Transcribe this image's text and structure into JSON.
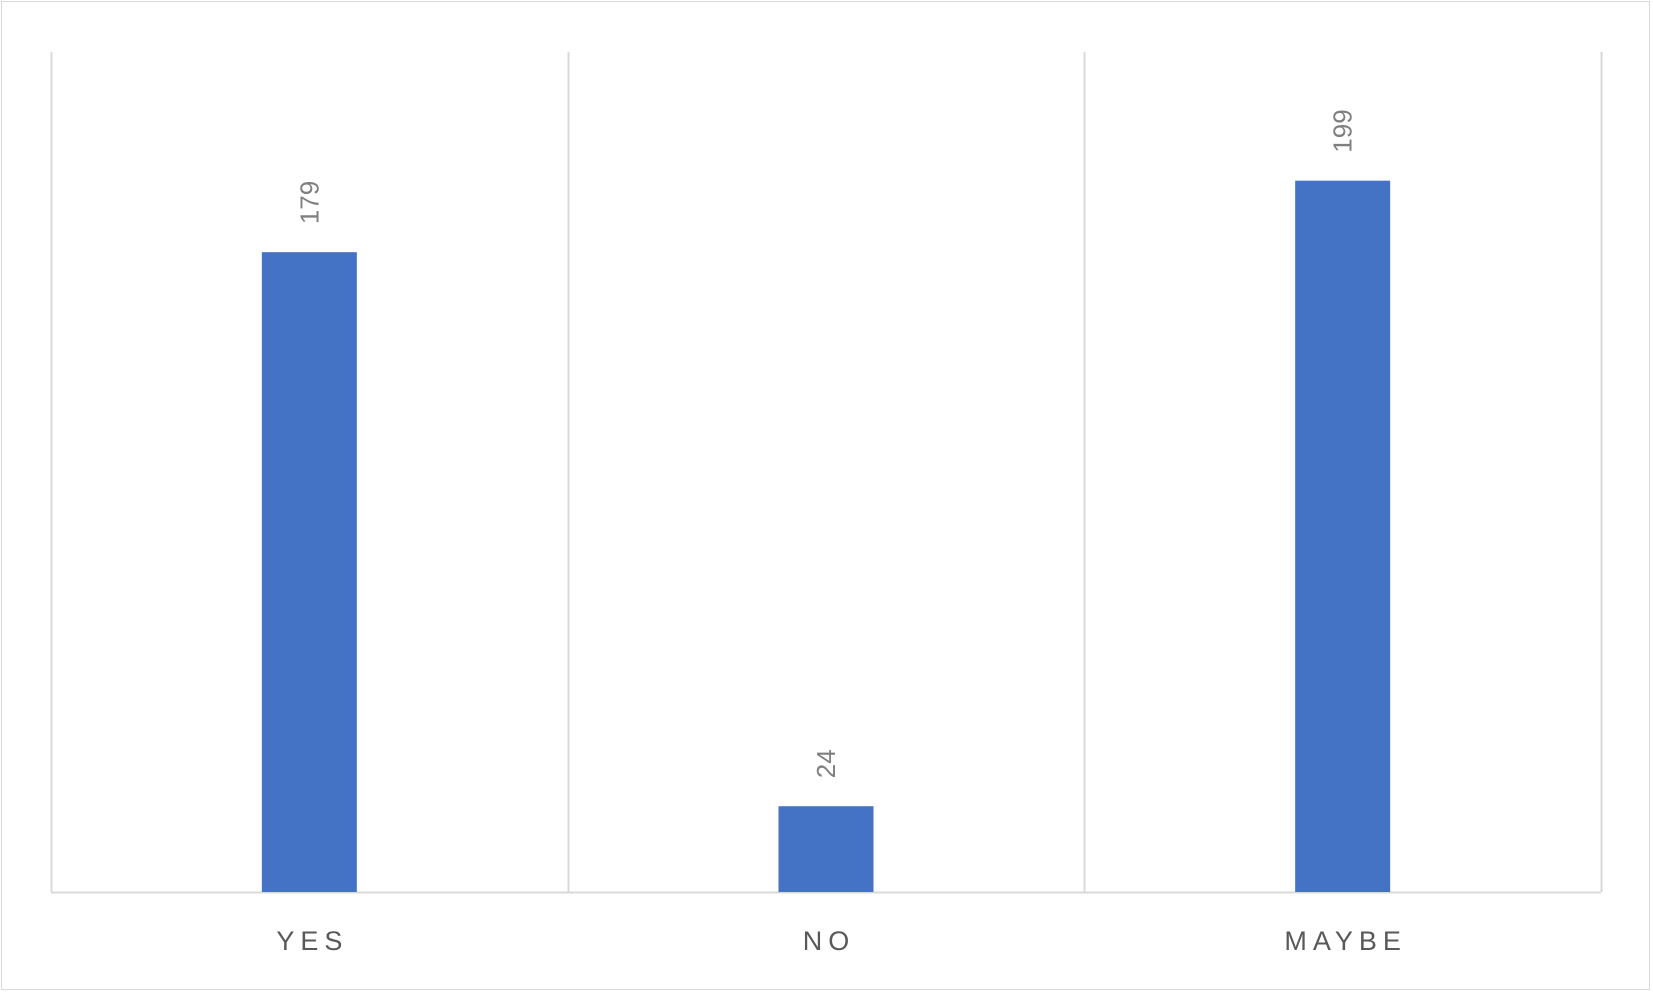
{
  "chart_data": {
    "type": "bar",
    "categories": [
      "YES",
      "NO",
      "MAYBE"
    ],
    "values": [
      179,
      24,
      199
    ],
    "ylim": [
      0,
      235
    ],
    "grid": "vertical category separators",
    "data_labels": true,
    "colors": {
      "bar": "#4472c4",
      "gridline": "#d9d9d9",
      "axis_text": "#595959",
      "value_text": "#7f7f7f"
    }
  }
}
